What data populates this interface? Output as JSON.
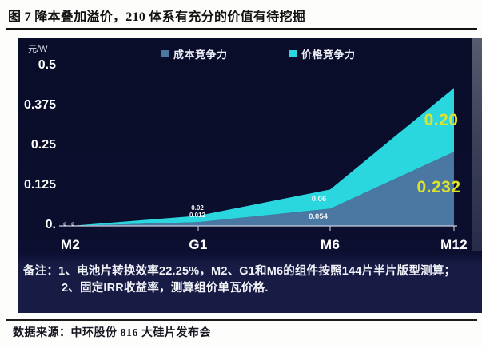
{
  "header": {
    "title": "图 7 降本叠加溢价，210 体系有充分的价值有待挖掘"
  },
  "notes": {
    "prefix": "备注：",
    "line1": "1、电池片转换效率22.25%，M2、G1和M6的组件按照144片半片版型测算；",
    "line2": "2、固定IRR收益率，测算组价单瓦价格."
  },
  "footer": {
    "source": "数据来源：中环股份 816 大硅片发布会"
  },
  "colors": {
    "panel_background": "#0a0d29",
    "notes_background": "#181c45",
    "cost_series": "#4a78a3",
    "price_series": "#2bd7de",
    "highlight_label": "#dde32b",
    "axis_text": "#ffffff"
  },
  "chart_data": {
    "type": "area",
    "stacked": true,
    "title": "",
    "unit_label": "元/W",
    "categories": [
      "M2",
      "G1",
      "M6",
      "M12"
    ],
    "series": [
      {
        "name": "成本竞争力",
        "color": "#4a78a3",
        "values": [
          0,
          0.012,
          0.054,
          0.232
        ],
        "labels": [
          "0",
          "0.012",
          "0.054",
          "0.232"
        ]
      },
      {
        "name": "价格竞争力",
        "color": "#2bd7de",
        "values": [
          0,
          0.02,
          0.06,
          0.2
        ],
        "labels": [
          "0",
          "0.02",
          "0.06",
          "0.20"
        ]
      }
    ],
    "ylim": [
      0,
      0.5
    ],
    "yticks": [
      0,
      0.125,
      0.25,
      0.375,
      0.5
    ],
    "ytick_labels": [
      "0.",
      "0.125",
      "0.25",
      "0.375",
      "0.5"
    ],
    "legend_position": "top",
    "grid": false,
    "highlight_label_color": "#dde32b"
  }
}
